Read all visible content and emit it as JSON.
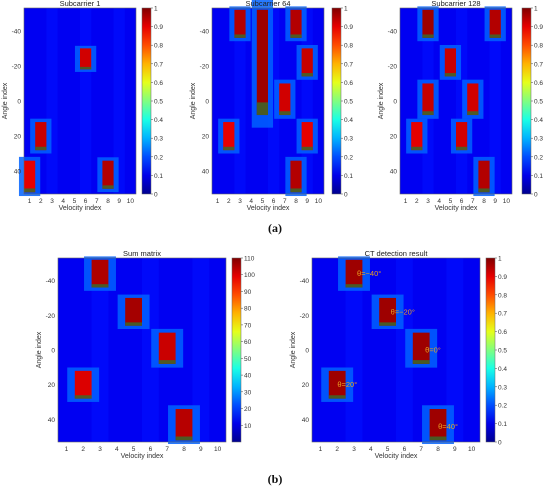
{
  "chart_data": [
    {
      "type": "heatmap",
      "title": "Subcarrier 1",
      "xlabel": "Velocity index",
      "ylabel": "Angle index",
      "xticks": [
        1,
        2,
        3,
        4,
        5,
        6,
        7,
        8,
        9,
        10
      ],
      "yticks": [
        -40,
        -20,
        0,
        20,
        40
      ],
      "xlim": [
        0.5,
        10.5
      ],
      "ylim": [
        -53,
        53
      ],
      "colorbar": {
        "min": 0,
        "max": 1,
        "ticks": [
          0,
          0.1,
          0.2,
          0.3,
          0.4,
          0.5,
          0.6,
          0.7,
          0.8,
          0.9,
          1
        ],
        "labels": [
          "0",
          "0.1",
          "0.2",
          "0.3",
          "0.4",
          "0.5",
          "0.6",
          "0.7",
          "0.8",
          "0.9",
          "1"
        ]
      },
      "blocks": [
        {
          "x": 6,
          "y0": -30,
          "y1": -18,
          "value": 0.92
        },
        {
          "x": 2,
          "y0": 12,
          "y1": 28,
          "value": 0.93
        },
        {
          "x": 8,
          "y0": 34,
          "y1": 50,
          "value": 0.95
        },
        {
          "x": 1,
          "y0": 34,
          "y1": 52,
          "value": 0.9
        }
      ]
    },
    {
      "type": "heatmap",
      "title": "Subcarrier 64",
      "xlabel": "Velocity index",
      "ylabel": "Angle index",
      "xticks": [
        1,
        2,
        3,
        4,
        5,
        6,
        7,
        8,
        9,
        10
      ],
      "yticks": [
        -40,
        -20,
        0,
        20,
        40
      ],
      "xlim": [
        0.5,
        10.5
      ],
      "ylim": [
        -53,
        53
      ],
      "colorbar": {
        "min": 0,
        "max": 1,
        "ticks": [
          0,
          0.1,
          0.2,
          0.3,
          0.4,
          0.5,
          0.6,
          0.7,
          0.8,
          0.9,
          1
        ],
        "labels": [
          "0",
          "0.1",
          "0.2",
          "0.3",
          "0.4",
          "0.5",
          "0.6",
          "0.7",
          "0.8",
          "0.9",
          "1"
        ]
      },
      "blocks": [
        {
          "x": 3,
          "y0": -52,
          "y1": -36,
          "value": 0.95
        },
        {
          "x": 5,
          "y0": -52,
          "y1": 8,
          "value": 0.97
        },
        {
          "x": 8,
          "y0": -52,
          "y1": -36,
          "value": 0.95
        },
        {
          "x": 9,
          "y0": -30,
          "y1": -14,
          "value": 0.93
        },
        {
          "x": 7,
          "y0": -10,
          "y1": 8,
          "value": 0.92
        },
        {
          "x": 2,
          "y0": 12,
          "y1": 28,
          "value": 0.9
        },
        {
          "x": 9,
          "y0": 12,
          "y1": 28,
          "value": 0.9
        },
        {
          "x": 8,
          "y0": 34,
          "y1": 52,
          "value": 0.95
        }
      ]
    },
    {
      "type": "heatmap",
      "title": "Subcarrier 128",
      "xlabel": "Velocity index",
      "ylabel": "Angle index",
      "xticks": [
        1,
        2,
        3,
        4,
        5,
        6,
        7,
        8,
        9,
        10
      ],
      "yticks": [
        -40,
        -20,
        0,
        20,
        40
      ],
      "xlim": [
        0.5,
        10.5
      ],
      "ylim": [
        -53,
        53
      ],
      "colorbar": {
        "min": 0,
        "max": 1,
        "ticks": [
          0,
          0.1,
          0.2,
          0.3,
          0.4,
          0.5,
          0.6,
          0.7,
          0.8,
          0.9,
          1
        ],
        "labels": [
          "0",
          "0.1",
          "0.2",
          "0.3",
          "0.4",
          "0.5",
          "0.6",
          "0.7",
          "0.8",
          "0.9",
          "1"
        ]
      },
      "blocks": [
        {
          "x": 3,
          "y0": -52,
          "y1": -36,
          "value": 0.97
        },
        {
          "x": 9,
          "y0": -52,
          "y1": -36,
          "value": 0.95
        },
        {
          "x": 5,
          "y0": -30,
          "y1": -14,
          "value": 0.93
        },
        {
          "x": 3,
          "y0": -10,
          "y1": 8,
          "value": 0.93
        },
        {
          "x": 7,
          "y0": -10,
          "y1": 8,
          "value": 0.92
        },
        {
          "x": 2,
          "y0": 12,
          "y1": 28,
          "value": 0.9
        },
        {
          "x": 6,
          "y0": 12,
          "y1": 28,
          "value": 0.92
        },
        {
          "x": 8,
          "y0": 34,
          "y1": 52,
          "value": 0.95
        }
      ]
    },
    {
      "type": "heatmap",
      "title": "Sum matrix",
      "xlabel": "Velocity index",
      "ylabel": "Angle index",
      "xticks": [
        1,
        2,
        3,
        4,
        5,
        6,
        7,
        8,
        9,
        10
      ],
      "yticks": [
        -40,
        -20,
        0,
        20,
        40
      ],
      "xlim": [
        0.5,
        10.5
      ],
      "ylim": [
        -53,
        53
      ],
      "colorbar": {
        "min": 0,
        "max": 110,
        "ticks": [
          10,
          20,
          30,
          40,
          50,
          60,
          70,
          80,
          90,
          100,
          110
        ],
        "labels": [
          "10",
          "20",
          "30",
          "40",
          "50",
          "60",
          "70",
          "80",
          "90",
          "100",
          "110"
        ]
      },
      "blocks": [
        {
          "x": 3,
          "y0": -52,
          "y1": -36,
          "value": 105
        },
        {
          "x": 5,
          "y0": -30,
          "y1": -14,
          "value": 106
        },
        {
          "x": 7,
          "y0": -10,
          "y1": 8,
          "value": 102
        },
        {
          "x": 2,
          "y0": 12,
          "y1": 28,
          "value": 100
        },
        {
          "x": 8,
          "y0": 34,
          "y1": 52,
          "value": 104
        }
      ]
    },
    {
      "type": "heatmap",
      "title": "CT detection result",
      "xlabel": "Velocity index",
      "ylabel": "Angle index",
      "xticks": [
        1,
        2,
        3,
        4,
        5,
        6,
        7,
        8,
        9,
        10
      ],
      "yticks": [
        -40,
        -20,
        0,
        20,
        40
      ],
      "xlim": [
        0.5,
        10.5
      ],
      "ylim": [
        -53,
        53
      ],
      "colorbar": {
        "min": 0,
        "max": 1,
        "ticks": [
          0,
          0.1,
          0.2,
          0.3,
          0.4,
          0.5,
          0.6,
          0.7,
          0.8,
          0.9,
          1
        ],
        "labels": [
          "0",
          "0.1",
          "0.2",
          "0.3",
          "0.4",
          "0.5",
          "0.6",
          "0.7",
          "0.8",
          "0.9",
          "1"
        ]
      },
      "blocks": [
        {
          "x": 3,
          "y0": -52,
          "y1": -36,
          "value": 0.97
        },
        {
          "x": 5,
          "y0": -30,
          "y1": -14,
          "value": 0.97
        },
        {
          "x": 7,
          "y0": -10,
          "y1": 8,
          "value": 0.97
        },
        {
          "x": 2,
          "y0": 12,
          "y1": 28,
          "value": 0.97
        },
        {
          "x": 8,
          "y0": 34,
          "y1": 52,
          "value": 0.97
        }
      ],
      "annotations": [
        {
          "text": "θ=−40°",
          "x": 3.9,
          "y": -44
        },
        {
          "text": "θ=−20°",
          "x": 5.9,
          "y": -22
        },
        {
          "text": "θ=0°",
          "x": 7.7,
          "y": 0
        },
        {
          "text": "θ=20°",
          "x": 2.6,
          "y": 20
        },
        {
          "text": "θ=40°",
          "x": 8.6,
          "y": 44
        }
      ]
    }
  ],
  "labels": {
    "a": "(a)",
    "b": "(b)"
  }
}
